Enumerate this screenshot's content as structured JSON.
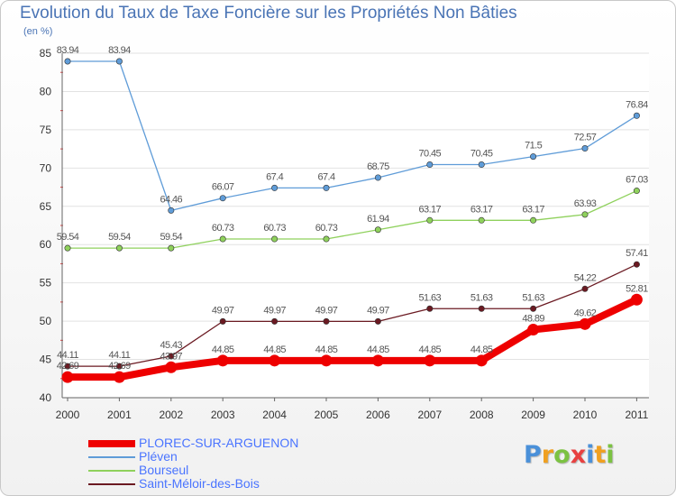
{
  "chart_data": {
    "type": "line",
    "title": "Evolution du Taux de Taxe Foncière sur les Propriétés Non Bâties",
    "ylabel": "(en %)",
    "xlabel": "",
    "ylim": [
      40,
      85
    ],
    "yticks": [
      40,
      45,
      50,
      55,
      60,
      65,
      70,
      75,
      80,
      85
    ],
    "categories": [
      "2000",
      "2001",
      "2002",
      "2003",
      "2004",
      "2005",
      "2006",
      "2007",
      "2008",
      "2009",
      "2010",
      "2011"
    ],
    "series": [
      {
        "name": "Saint-Méloir-des-Bois",
        "color": "#6b1a22",
        "values": [
          44.11,
          44.11,
          45.43,
          49.97,
          49.97,
          49.97,
          49.97,
          51.63,
          51.63,
          51.63,
          54.22,
          57.41
        ],
        "labels": [
          "44.11",
          "44.11",
          "45.43",
          "49.97",
          "49.97",
          "49.97",
          "49.97",
          "51.63",
          "51.63",
          "51.63",
          "54.22",
          "57.41"
        ]
      },
      {
        "name": "Bourseul",
        "color": "#8fd15c",
        "values": [
          59.54,
          59.54,
          59.54,
          60.73,
          60.73,
          60.73,
          61.94,
          63.17,
          63.17,
          63.17,
          63.93,
          67.03
        ],
        "labels": [
          "59.54",
          "59.54",
          "59.54",
          "60.73",
          "60.73",
          "60.73",
          "61.94",
          "63.17",
          "63.17",
          "63.17",
          "63.93",
          "67.03"
        ]
      },
      {
        "name": "Pléven",
        "color": "#5f9cd8",
        "values": [
          83.94,
          83.94,
          64.46,
          66.07,
          67.4,
          67.4,
          68.75,
          70.45,
          70.45,
          71.5,
          72.57,
          76.84
        ],
        "labels": [
          "83.94",
          "83.94",
          "64.46",
          "66.07",
          "67.4",
          "67.4",
          "68.75",
          "70.45",
          "70.45",
          "71.5",
          "72.57",
          "76.84"
        ]
      },
      {
        "name": "PLOREC-SUR-ARGUENON",
        "color": "#ee0000",
        "values": [
          42.69,
          42.69,
          43.97,
          44.85,
          44.85,
          44.85,
          44.85,
          44.85,
          44.85,
          48.89,
          49.62,
          52.81
        ],
        "labels": [
          "42.69",
          "42.69",
          "43.97",
          "44.85",
          "44.85",
          "44.85",
          "44.85",
          "44.85",
          "44.85",
          "48.89",
          "49.62",
          "52.81"
        ]
      }
    ]
  },
  "legend": [
    {
      "name": "PLOREC-SUR-ARGUENON",
      "color": "#ee0000",
      "thick": true
    },
    {
      "name": "Pléven",
      "color": "#5f9cd8",
      "thick": false
    },
    {
      "name": "Bourseul",
      "color": "#8fd15c",
      "thick": false
    },
    {
      "name": "Saint-Méloir-des-Bois",
      "color": "#6b1a22",
      "thick": false
    }
  ],
  "logo": {
    "text": "Proxiti",
    "letters": [
      {
        "ch": "P",
        "color": "#4a90d9"
      },
      {
        "ch": "r",
        "color": "#f0a020"
      },
      {
        "ch": "o",
        "color": "#7cc242"
      },
      {
        "ch": "x",
        "color": "#e84040"
      },
      {
        "ch": "i",
        "color": "#4a90d9"
      },
      {
        "ch": "t",
        "color": "#f0a020"
      },
      {
        "ch": "i",
        "color": "#7cc242"
      }
    ]
  }
}
